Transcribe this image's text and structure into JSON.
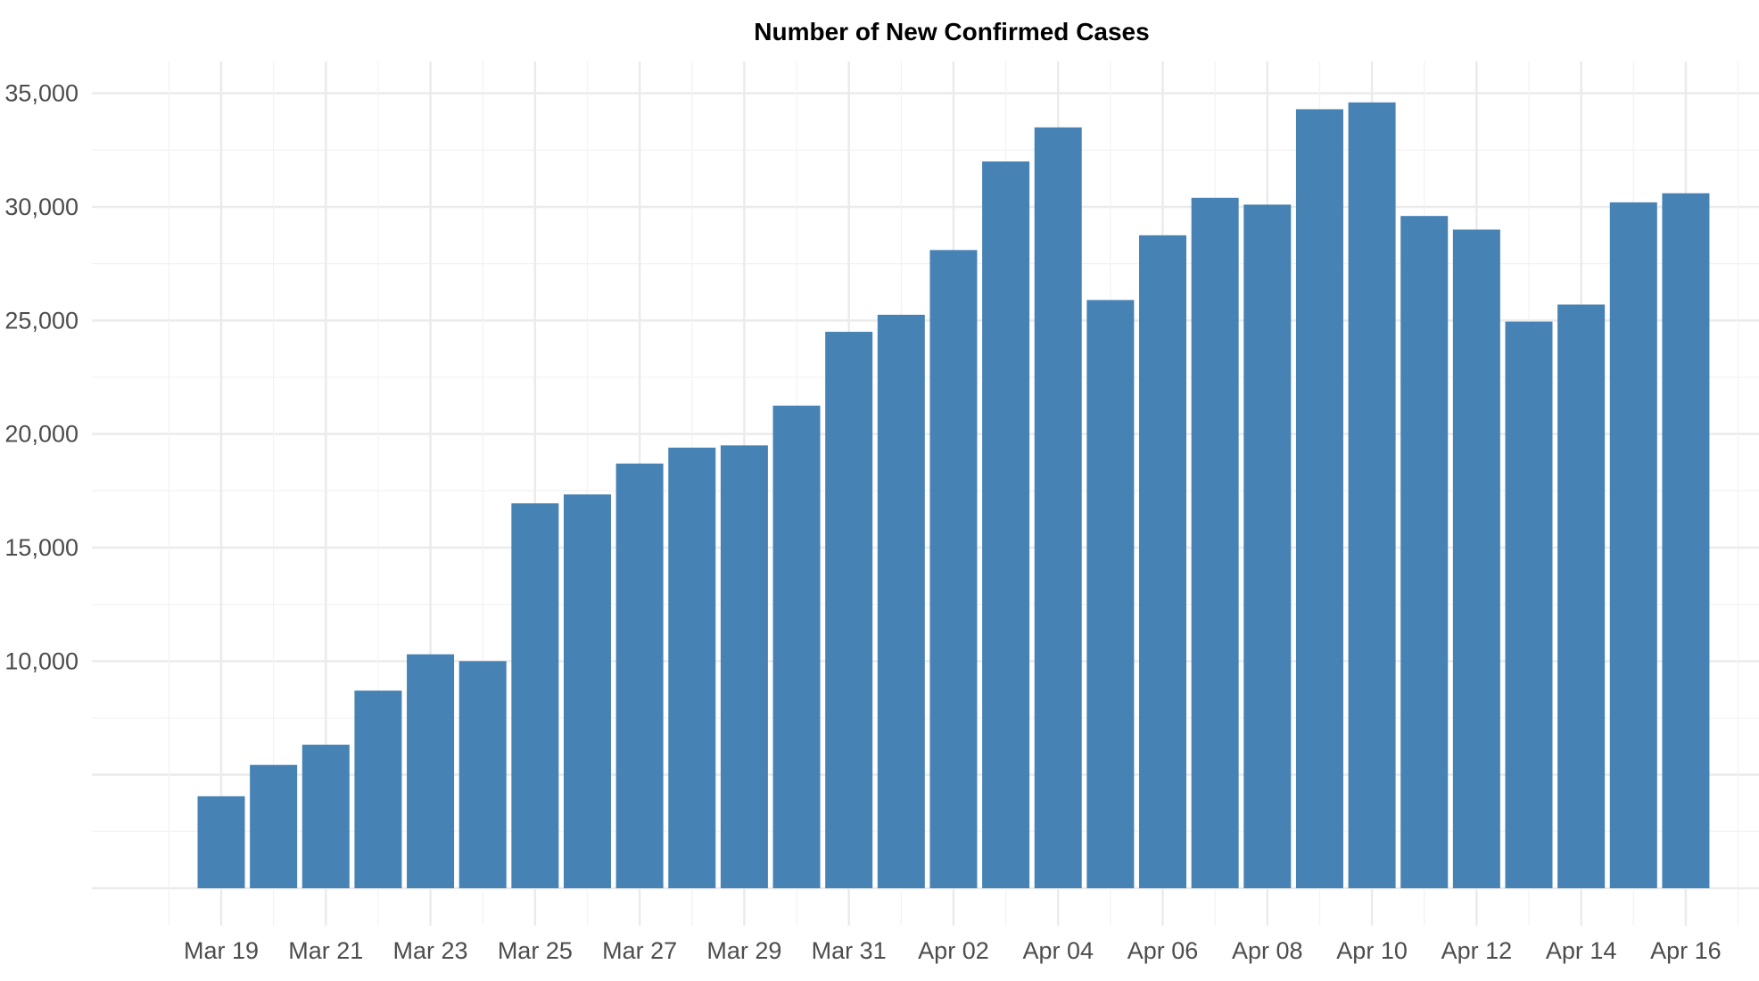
{
  "chart_data": {
    "type": "bar",
    "title": "Number of New Confirmed Cases",
    "xlabel": "",
    "ylabel": "",
    "categories": [
      "Mar 19",
      "Mar 20",
      "Mar 21",
      "Mar 22",
      "Mar 23",
      "Mar 24",
      "Mar 25",
      "Mar 26",
      "Mar 27",
      "Mar 28",
      "Mar 29",
      "Mar 30",
      "Mar 31",
      "Apr 01",
      "Apr 02",
      "Apr 03",
      "Apr 04",
      "Apr 05",
      "Apr 06",
      "Apr 07",
      "Apr 08",
      "Apr 09",
      "Apr 10",
      "Apr 11",
      "Apr 12",
      "Apr 13",
      "Apr 14",
      "Apr 15",
      "Apr 16"
    ],
    "values": [
      4050,
      5430,
      6320,
      8700,
      10300,
      10000,
      16950,
      17340,
      18700,
      19400,
      19500,
      21250,
      24500,
      25250,
      28100,
      32000,
      33500,
      25900,
      28750,
      30400,
      30100,
      34300,
      34600,
      29600,
      29000,
      24950,
      25700,
      30200,
      30600
    ],
    "x_tick_labels": [
      "Mar 19",
      "Mar 21",
      "Mar 23",
      "Mar 25",
      "Mar 27",
      "Mar 29",
      "Mar 31",
      "Apr 02",
      "Apr 04",
      "Apr 06",
      "Apr 08",
      "Apr 10",
      "Apr 12",
      "Apr 14",
      "Apr 16"
    ],
    "y_ticks": [
      10000,
      15000,
      20000,
      25000,
      30000,
      35000
    ],
    "y_tick_labels": [
      "10,000",
      "15,000",
      "20,000",
      "25,000",
      "30,000",
      "35,000"
    ],
    "ylim": [
      -1650,
      36400
    ],
    "grid": true,
    "bar_color": "#4682B4"
  }
}
